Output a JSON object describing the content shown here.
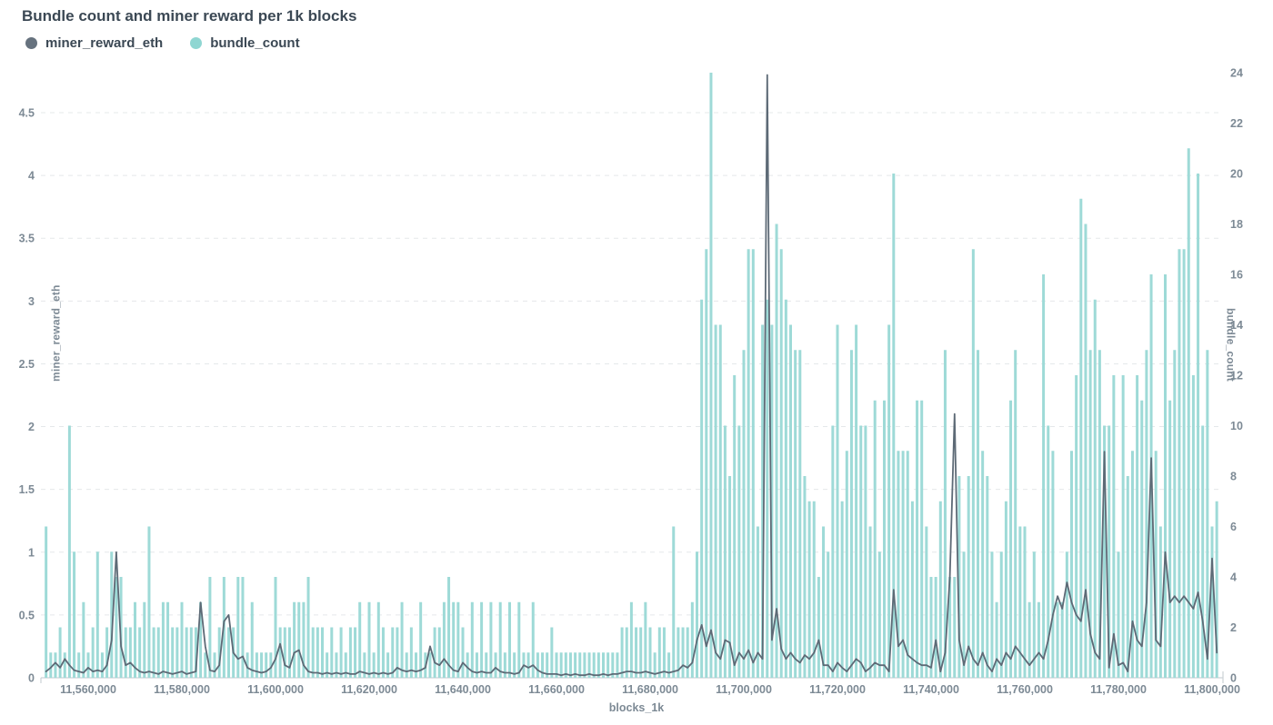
{
  "title": "Bundle count and miner reward per 1k blocks",
  "legend": {
    "items": [
      {
        "label": "miner_reward_eth",
        "color": "#66727e"
      },
      {
        "label": "bundle_count",
        "color": "#8fd6d2"
      }
    ]
  },
  "colors": {
    "background": "#ffffff",
    "title_text": "#3b4854",
    "axis_text": "#7d8a95",
    "grid": "#e5e8ea",
    "baseline": "#ccd2d6",
    "bar_fill": "#9edad7",
    "line_stroke": "#5d6a76"
  },
  "axes": {
    "left": {
      "label": "miner_reward_eth",
      "tick_values": [
        0,
        0.5,
        1,
        1.5,
        2,
        2.5,
        3,
        3.5,
        4,
        4.5
      ],
      "tick_labels": [
        "0",
        "0.5",
        "1",
        "1.5",
        "2",
        "2.5",
        "3",
        "3.5",
        "4",
        "4.5"
      ]
    },
    "right": {
      "label": "bundle_count",
      "tick_values": [
        0,
        2,
        4,
        6,
        8,
        10,
        12,
        14,
        16,
        18,
        20,
        22,
        24
      ],
      "tick_labels": [
        "0",
        "2",
        "4",
        "6",
        "8",
        "10",
        "12",
        "14",
        "16",
        "18",
        "20",
        "22",
        "24"
      ]
    },
    "x": {
      "label": "blocks_1k",
      "tick_values": [
        11560000,
        11580000,
        11600000,
        11620000,
        11640000,
        11660000,
        11680000,
        11700000,
        11720000,
        11740000,
        11760000,
        11780000,
        11800000
      ],
      "tick_labels": [
        "11,560,000",
        "11,580,000",
        "11,600,000",
        "11,620,000",
        "11,640,000",
        "11,660,000",
        "11,680,000",
        "11,700,000",
        "11,720,000",
        "11,740,000",
        "11,760,000",
        "11,780,000",
        "11,800,000"
      ]
    }
  },
  "chart_data": {
    "type": "bar+line",
    "title": "Bundle count and miner reward per 1k blocks",
    "xlabel": "blocks_1k",
    "ylabel_left": "miner_reward_eth",
    "ylabel_right": "bundle_count",
    "left_ylim": [
      0,
      4.82
    ],
    "right_ylim": [
      0,
      24
    ],
    "grid": "horizontal-dashed",
    "legend_position": "top-left",
    "x_block_start": 11551000,
    "x_block_step": 1000,
    "series": [
      {
        "name": "miner_reward_eth",
        "type": "line",
        "axis": "left",
        "color": "#5d6a76",
        "values": [
          0.05,
          0.08,
          0.12,
          0.08,
          0.15,
          0.1,
          0.06,
          0.05,
          0.04,
          0.08,
          0.05,
          0.06,
          0.05,
          0.1,
          0.3,
          1.0,
          0.25,
          0.1,
          0.12,
          0.08,
          0.05,
          0.04,
          0.05,
          0.04,
          0.03,
          0.05,
          0.04,
          0.03,
          0.04,
          0.05,
          0.03,
          0.04,
          0.05,
          0.6,
          0.25,
          0.06,
          0.05,
          0.1,
          0.45,
          0.5,
          0.2,
          0.15,
          0.17,
          0.08,
          0.06,
          0.05,
          0.04,
          0.05,
          0.08,
          0.15,
          0.27,
          0.1,
          0.08,
          0.2,
          0.22,
          0.1,
          0.05,
          0.04,
          0.04,
          0.03,
          0.04,
          0.03,
          0.04,
          0.03,
          0.04,
          0.03,
          0.03,
          0.05,
          0.04,
          0.03,
          0.04,
          0.03,
          0.04,
          0.03,
          0.04,
          0.08,
          0.06,
          0.05,
          0.06,
          0.05,
          0.06,
          0.08,
          0.25,
          0.12,
          0.1,
          0.15,
          0.1,
          0.06,
          0.05,
          0.12,
          0.08,
          0.05,
          0.04,
          0.05,
          0.04,
          0.04,
          0.08,
          0.05,
          0.04,
          0.04,
          0.03,
          0.04,
          0.1,
          0.08,
          0.1,
          0.06,
          0.04,
          0.03,
          0.03,
          0.03,
          0.02,
          0.03,
          0.02,
          0.03,
          0.02,
          0.02,
          0.03,
          0.02,
          0.02,
          0.03,
          0.02,
          0.03,
          0.03,
          0.04,
          0.05,
          0.05,
          0.04,
          0.04,
          0.05,
          0.04,
          0.03,
          0.04,
          0.05,
          0.04,
          0.05,
          0.06,
          0.1,
          0.08,
          0.12,
          0.3,
          0.42,
          0.25,
          0.38,
          0.2,
          0.15,
          0.3,
          0.28,
          0.1,
          0.2,
          0.15,
          0.22,
          0.12,
          0.2,
          0.15,
          4.8,
          0.3,
          0.55,
          0.23,
          0.15,
          0.2,
          0.15,
          0.12,
          0.18,
          0.15,
          0.2,
          0.3,
          0.1,
          0.1,
          0.05,
          0.12,
          0.08,
          0.05,
          0.1,
          0.15,
          0.12,
          0.05,
          0.08,
          0.12,
          0.1,
          0.1,
          0.05,
          0.7,
          0.25,
          0.3,
          0.18,
          0.15,
          0.12,
          0.1,
          0.1,
          0.08,
          0.3,
          0.05,
          0.2,
          0.8,
          2.1,
          0.3,
          0.1,
          0.25,
          0.15,
          0.1,
          0.2,
          0.1,
          0.05,
          0.15,
          0.1,
          0.2,
          0.15,
          0.25,
          0.2,
          0.15,
          0.1,
          0.15,
          0.2,
          0.15,
          0.3,
          0.5,
          0.65,
          0.55,
          0.76,
          0.6,
          0.5,
          0.45,
          0.7,
          0.35,
          0.2,
          0.15,
          1.8,
          0.08,
          0.35,
          0.1,
          0.12,
          0.05,
          0.45,
          0.3,
          0.25,
          0.6,
          1.75,
          0.3,
          0.25,
          1.0,
          0.6,
          0.65,
          0.6,
          0.65,
          0.6,
          0.55,
          0.68,
          0.45,
          0.15,
          0.95,
          0.2
        ]
      },
      {
        "name": "bundle_count",
        "type": "bar",
        "axis": "right",
        "color": "#9edad7",
        "values": [
          6,
          1,
          1,
          2,
          1,
          10,
          5,
          1,
          3,
          1,
          2,
          5,
          1,
          2,
          5,
          4,
          4,
          2,
          2,
          3,
          2,
          3,
          6,
          2,
          2,
          3,
          3,
          2,
          2,
          3,
          2,
          2,
          2,
          3,
          1,
          4,
          1,
          2,
          4,
          2,
          2,
          4,
          4,
          1,
          3,
          1,
          1,
          1,
          1,
          4,
          2,
          2,
          2,
          3,
          3,
          3,
          4,
          2,
          2,
          2,
          1,
          2,
          1,
          2,
          1,
          2,
          2,
          3,
          1,
          3,
          1,
          3,
          2,
          1,
          2,
          2,
          3,
          1,
          2,
          1,
          3,
          1,
          1,
          2,
          2,
          3,
          4,
          3,
          3,
          2,
          1,
          3,
          1,
          3,
          1,
          3,
          1,
          3,
          1,
          3,
          1,
          3,
          1,
          1,
          3,
          1,
          1,
          1,
          2,
          1,
          1,
          1,
          1,
          1,
          1,
          1,
          1,
          1,
          1,
          1,
          1,
          1,
          1,
          2,
          2,
          3,
          2,
          2,
          3,
          2,
          1,
          2,
          2,
          1,
          6,
          2,
          2,
          2,
          3,
          5,
          15,
          17,
          24,
          14,
          14,
          10,
          8,
          12,
          10,
          13,
          17,
          17,
          6,
          14,
          15,
          14,
          18,
          17,
          15,
          14,
          13,
          13,
          8,
          7,
          7,
          4,
          6,
          5,
          10,
          14,
          7,
          9,
          13,
          14,
          10,
          10,
          6,
          11,
          5,
          11,
          14,
          20,
          9,
          9,
          9,
          7,
          11,
          11,
          6,
          4,
          4,
          7,
          13,
          4,
          4,
          8,
          5,
          8,
          17,
          13,
          9,
          8,
          5,
          3,
          5,
          7,
          11,
          13,
          6,
          6,
          3,
          5,
          3,
          16,
          10,
          9,
          3,
          3,
          5,
          9,
          12,
          19,
          18,
          13,
          15,
          13,
          10,
          10,
          12,
          5,
          12,
          8,
          9,
          12,
          11,
          13,
          16,
          9,
          6,
          16,
          11,
          13,
          17,
          17,
          21,
          12,
          20,
          10,
          13,
          6,
          7
        ]
      }
    ]
  }
}
